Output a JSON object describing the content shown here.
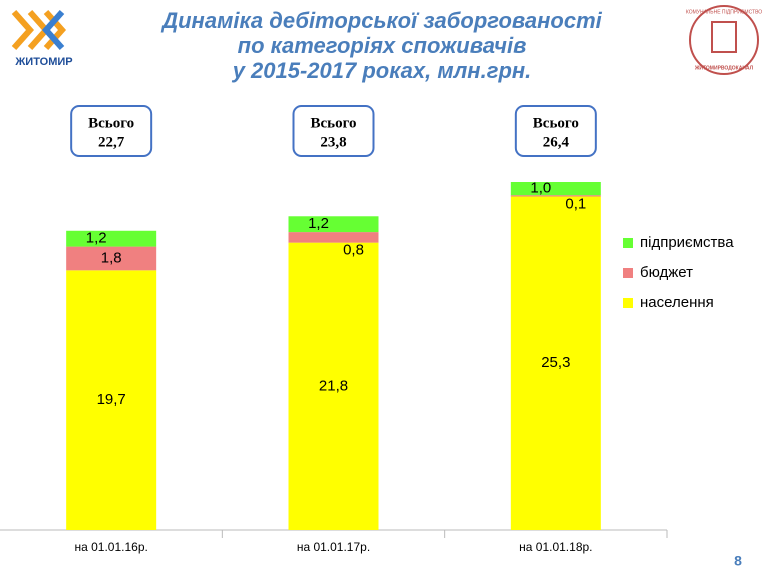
{
  "chart_data": {
    "type": "stacked-bar",
    "title": [
      "Динаміка дебіторської заборгованості",
      "по категоріях споживачів",
      "у 2015-2017 роках, млн.грн."
    ],
    "categories": [
      "на 01.01.16р.",
      "на 01.01.17р.",
      "на 01.01.18р."
    ],
    "series": [
      {
        "name": "населення",
        "color": "#ffff00",
        "values": [
          19.7,
          21.8,
          25.3
        ],
        "value_labels": [
          "19,7",
          "21,8",
          "25,3"
        ]
      },
      {
        "name": "бюджет",
        "color": "#f08080",
        "values": [
          1.8,
          0.8,
          0.1
        ],
        "value_labels": [
          "1,8",
          "0,8",
          "0,1"
        ]
      },
      {
        "name": "підприємства",
        "color": "#66ff33",
        "values": [
          1.2,
          1.2,
          1.0
        ],
        "value_labels": [
          "1,2",
          "1,2",
          "1,0"
        ]
      }
    ],
    "totals_label": "Всього",
    "totals": [
      22.7,
      23.8,
      26.4
    ],
    "totals_labels": [
      "22,7",
      "23,8",
      "26,4"
    ],
    "legend": "right"
  },
  "logo_left": "ЖИТОМИР",
  "logo_right": [
    "КОМУНАЛЬНЕ ПІДПРИЄМСТВО",
    "ЖИТОМИРВОДОКАНАЛ"
  ],
  "page_number": "8"
}
